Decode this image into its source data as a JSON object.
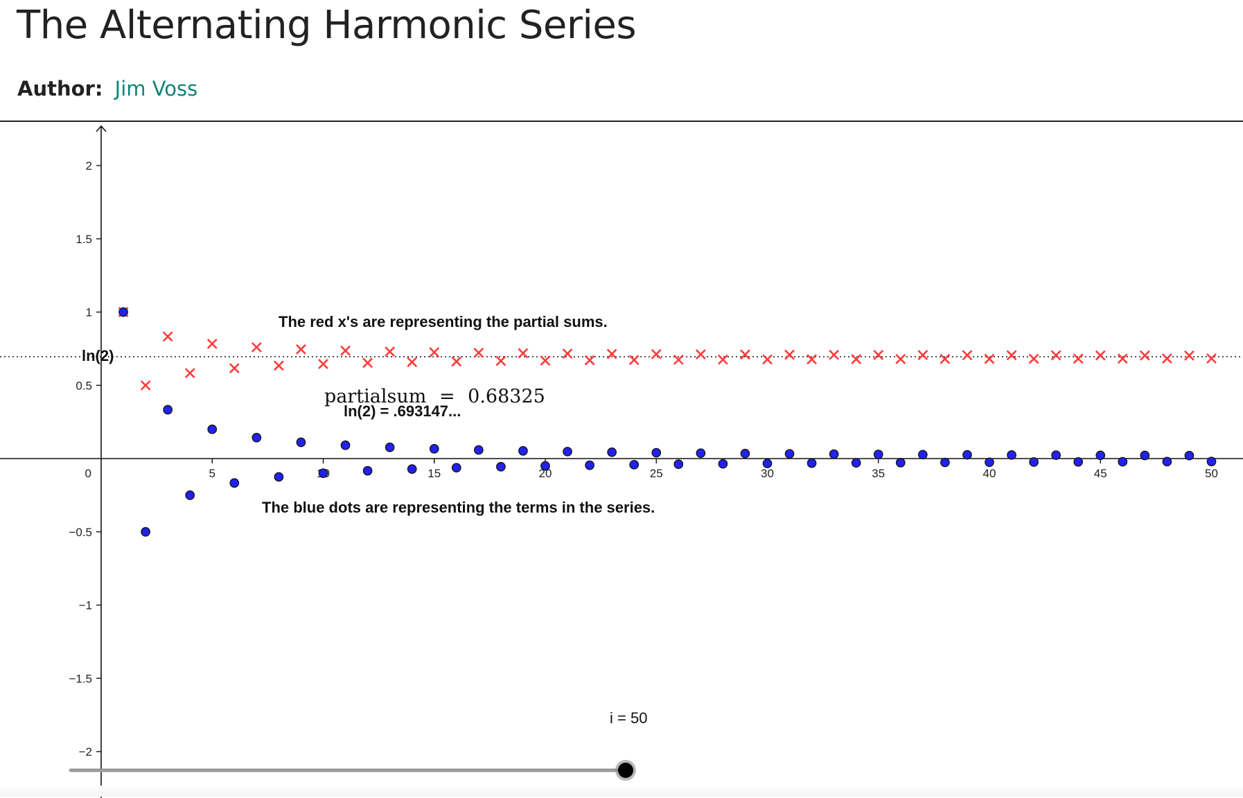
{
  "page": {
    "title": "The Alternating Harmonic Series",
    "author_label": "Author:",
    "author_name": "Jim Voss"
  },
  "applet": {
    "ln2_label": "ln(2)",
    "partial_sum_name": "partialsum",
    "partial_sum_equals": "=",
    "partial_sum_value": "0.68325",
    "ln2_value_text": "ln(2) = .693147...",
    "red_note": "The red x's are representing the partial sums.",
    "blue_note": "The blue dots are representing the terms in the series.",
    "slider_label": "i = 50",
    "slider": {
      "min": 1,
      "max": 50,
      "value": 50
    },
    "colors": {
      "partial_sums": "#ff3b3b",
      "terms": "#2222ee",
      "axes": "#111111",
      "slider_track": "#9a9a9a"
    }
  },
  "chart_data": {
    "type": "scatter",
    "x_ticks": [
      "5",
      "10",
      "15",
      "20",
      "25",
      "30",
      "35",
      "40",
      "45",
      "50"
    ],
    "y_ticks": [
      "2",
      "1.5",
      "1",
      "0.5",
      "0",
      "−0.5",
      "−1",
      "−1.5",
      "−2"
    ],
    "xlim": [
      0,
      51
    ],
    "ylim": [
      -2.2,
      2.3
    ],
    "reference_line": {
      "label": "ln(2)",
      "y": 0.6931
    },
    "series": [
      {
        "marker": "x",
        "color": "#ff3b3b",
        "x": [
          1,
          2,
          3,
          4,
          5,
          6,
          7,
          8,
          9,
          10,
          11,
          12,
          13,
          14,
          15,
          16,
          17,
          18,
          19,
          20,
          21,
          22,
          23,
          24,
          25,
          26,
          27,
          28,
          29,
          30,
          31,
          32,
          33,
          34,
          35,
          36,
          37,
          38,
          39,
          40,
          41,
          42,
          43,
          44,
          45,
          46,
          47,
          48,
          49,
          50
        ],
        "y": [
          1.0,
          0.5,
          0.8333,
          0.5833,
          0.7833,
          0.6167,
          0.7595,
          0.6345,
          0.7456,
          0.6456,
          0.7365,
          0.6532,
          0.7301,
          0.6587,
          0.7254,
          0.663,
          0.7218,
          0.6662,
          0.7188,
          0.6688,
          0.7164,
          0.6709,
          0.7144,
          0.6727,
          0.7127,
          0.6743,
          0.7113,
          0.6756,
          0.71,
          0.6767,
          0.7089,
          0.6777,
          0.708,
          0.6786,
          0.7072,
          0.6794,
          0.7064,
          0.6801,
          0.7057,
          0.6807,
          0.7051,
          0.6813,
          0.7046,
          0.6819,
          0.7041,
          0.6823,
          0.7036,
          0.6828,
          0.7032,
          0.6832
        ]
      },
      {
        "marker": "dot",
        "color": "#2222ee",
        "x": [
          1,
          2,
          3,
          4,
          5,
          6,
          7,
          8,
          9,
          10,
          11,
          12,
          13,
          14,
          15,
          16,
          17,
          18,
          19,
          20,
          21,
          22,
          23,
          24,
          25,
          26,
          27,
          28,
          29,
          30,
          31,
          32,
          33,
          34,
          35,
          36,
          37,
          38,
          39,
          40,
          41,
          42,
          43,
          44,
          45,
          46,
          47,
          48,
          49,
          50
        ],
        "y": [
          1.0,
          -0.5,
          0.3333,
          -0.25,
          0.2,
          -0.1667,
          0.1429,
          -0.125,
          0.1111,
          -0.1,
          0.0909,
          -0.0833,
          0.0769,
          -0.0714,
          0.0667,
          -0.0625,
          0.0588,
          -0.0556,
          0.0526,
          -0.05,
          0.0476,
          -0.0455,
          0.0435,
          -0.0417,
          0.04,
          -0.0385,
          0.037,
          -0.0357,
          0.0345,
          -0.0333,
          0.0323,
          -0.0313,
          0.0303,
          -0.0294,
          0.0286,
          -0.0278,
          0.027,
          -0.0263,
          0.0256,
          -0.025,
          0.0244,
          -0.0238,
          0.0233,
          -0.0227,
          0.0222,
          -0.0217,
          0.0213,
          -0.0208,
          0.0204,
          -0.02
        ]
      }
    ]
  }
}
